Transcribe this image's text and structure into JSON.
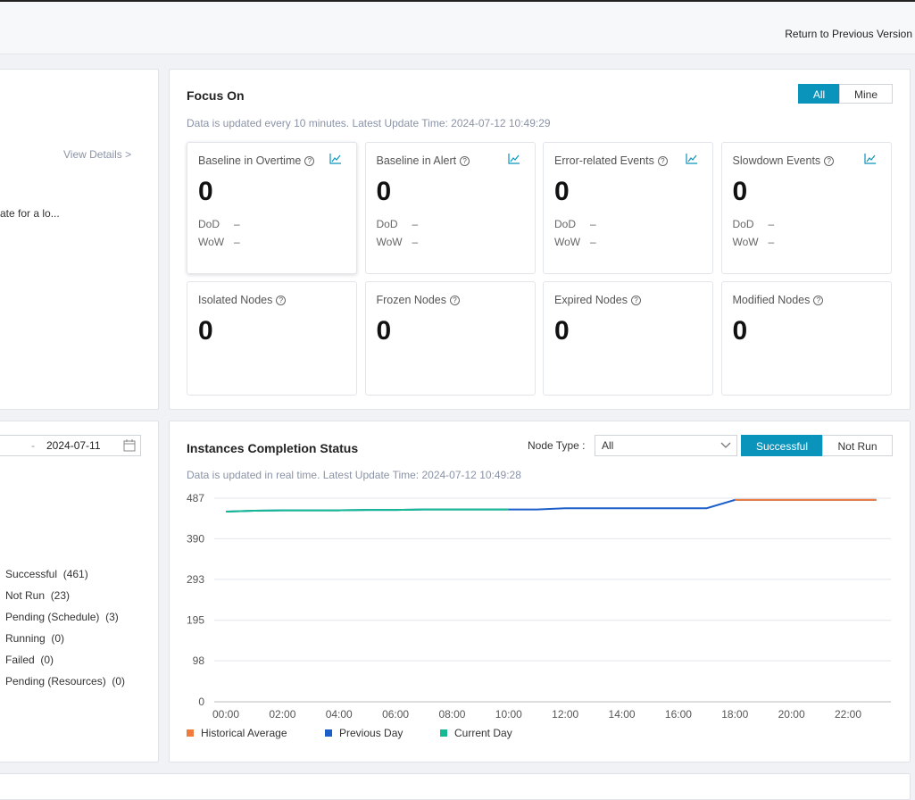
{
  "header": {
    "return_link": "Return to Previous Version"
  },
  "left_top": {
    "view_details": "View Details >",
    "snippet": "ate for a lo..."
  },
  "focus": {
    "title": "Focus On",
    "toggle": [
      "All",
      "Mine"
    ],
    "update": "Data is updated every 10 minutes. Latest Update Time: 2024-07-12 10:49:29",
    "cards": [
      {
        "title": "Baseline in Overtime",
        "value": 0,
        "dod_label": "DoD",
        "dod": "–",
        "wow_label": "WoW",
        "wow": "–"
      },
      {
        "title": "Baseline in Alert",
        "value": 0,
        "dod_label": "DoD",
        "dod": "–",
        "wow_label": "WoW",
        "wow": "–"
      },
      {
        "title": "Error-related Events",
        "value": 0,
        "dod_label": "DoD",
        "dod": "–",
        "wow_label": "WoW",
        "wow": "–"
      },
      {
        "title": "Slowdown Events",
        "value": 0,
        "dod_label": "DoD",
        "dod": "–",
        "wow_label": "WoW",
        "wow": "–"
      },
      {
        "title": "Isolated Nodes",
        "value": 0
      },
      {
        "title": "Frozen Nodes",
        "value": 0
      },
      {
        "title": "Expired Nodes",
        "value": 0
      },
      {
        "title": "Modified Nodes",
        "value": 0
      }
    ]
  },
  "left_bottom": {
    "date_sep": "-",
    "date": "2024-07-11",
    "statuses": [
      "Successful  (461)",
      "Not Run  (23)",
      "Pending (Schedule)  (3)",
      "Running  (0)",
      "Failed  (0)",
      "Pending (Resources)  (0)"
    ]
  },
  "instances": {
    "title": "Instances Completion Status",
    "node_type_label": "Node Type :",
    "node_type_value": "All",
    "toggle": [
      "Successful",
      "Not Run"
    ],
    "update": "Data is updated in real time. Latest Update Time: 2024-07-12 10:49:28"
  },
  "chart_data": {
    "type": "line",
    "categories": [
      "00:00",
      null,
      "02:00",
      null,
      "04:00",
      null,
      "06:00",
      null,
      "08:00",
      null,
      "10:00",
      null,
      "12:00",
      null,
      "14:00",
      null,
      "16:00",
      null,
      "18:00",
      null,
      "20:00",
      null,
      "22:00",
      null
    ],
    "series": [
      {
        "name": "Historical Average",
        "color": "#ef7b3c",
        "values": [
          null,
          null,
          null,
          null,
          null,
          null,
          null,
          null,
          null,
          null,
          null,
          null,
          null,
          null,
          null,
          null,
          null,
          null,
          483,
          483,
          483,
          483,
          483,
          483
        ]
      },
      {
        "name": "Previous Day",
        "color": "#1c5fc9",
        "values": [
          455,
          457,
          458,
          458,
          458,
          459,
          459,
          460,
          460,
          460,
          460,
          460,
          463,
          463,
          463,
          463,
          463,
          463,
          483,
          483,
          483,
          483,
          483,
          483
        ]
      },
      {
        "name": "Current Day",
        "color": "#15b993",
        "values": [
          455,
          457,
          458,
          458,
          458,
          459,
          459,
          460,
          460,
          460,
          460,
          null,
          null,
          null,
          null,
          null,
          null,
          null,
          null,
          null,
          null,
          null,
          null,
          null
        ]
      }
    ],
    "ylim": [
      0,
      487
    ],
    "yticks": [
      0,
      98,
      195,
      293,
      390,
      487
    ],
    "grid": true
  }
}
